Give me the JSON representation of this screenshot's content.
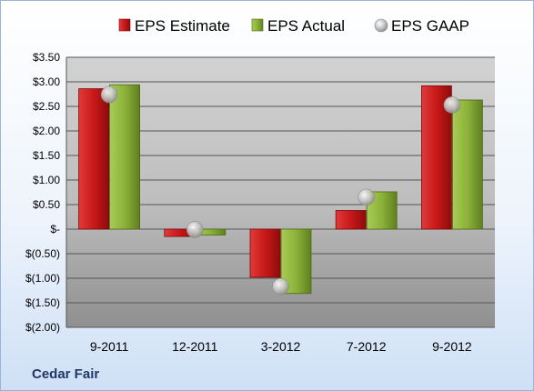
{
  "company": "Cedar Fair",
  "chart_data": {
    "type": "bar",
    "title": "",
    "xlabel": "",
    "ylabel": "",
    "categories": [
      "9-2011",
      "12-2011",
      "3-2012",
      "7-2012",
      "9-2012"
    ],
    "series": [
      {
        "name": "EPS Estimate",
        "type": "bar",
        "color": "#cc1f1f",
        "values": [
          2.86,
          -0.15,
          -0.98,
          0.38,
          2.92
        ]
      },
      {
        "name": "EPS Actual",
        "type": "bar",
        "color": "#8cb23a",
        "values": [
          2.94,
          -0.12,
          -1.31,
          0.76,
          2.63
        ]
      },
      {
        "name": "EPS GAAP",
        "type": "marker",
        "color": "#b8b8b8",
        "values": [
          2.74,
          -0.01,
          -1.17,
          0.65,
          2.53
        ]
      }
    ],
    "ylim": [
      -2.0,
      3.5
    ],
    "yticks": [
      3.5,
      3.0,
      2.5,
      2.0,
      1.5,
      1.0,
      0.5,
      0,
      -0.5,
      -1.0,
      -1.5,
      -2.0
    ],
    "ytick_labels": [
      "$3.50",
      "$3.00",
      "$2.50",
      "$2.00",
      "$1.50",
      "$1.00",
      "$0.50",
      "$-",
      "$(0.50)",
      "$(1.00)",
      "$(1.50)",
      "$(2.00)"
    ],
    "grid": true,
    "legend_position": "top"
  }
}
